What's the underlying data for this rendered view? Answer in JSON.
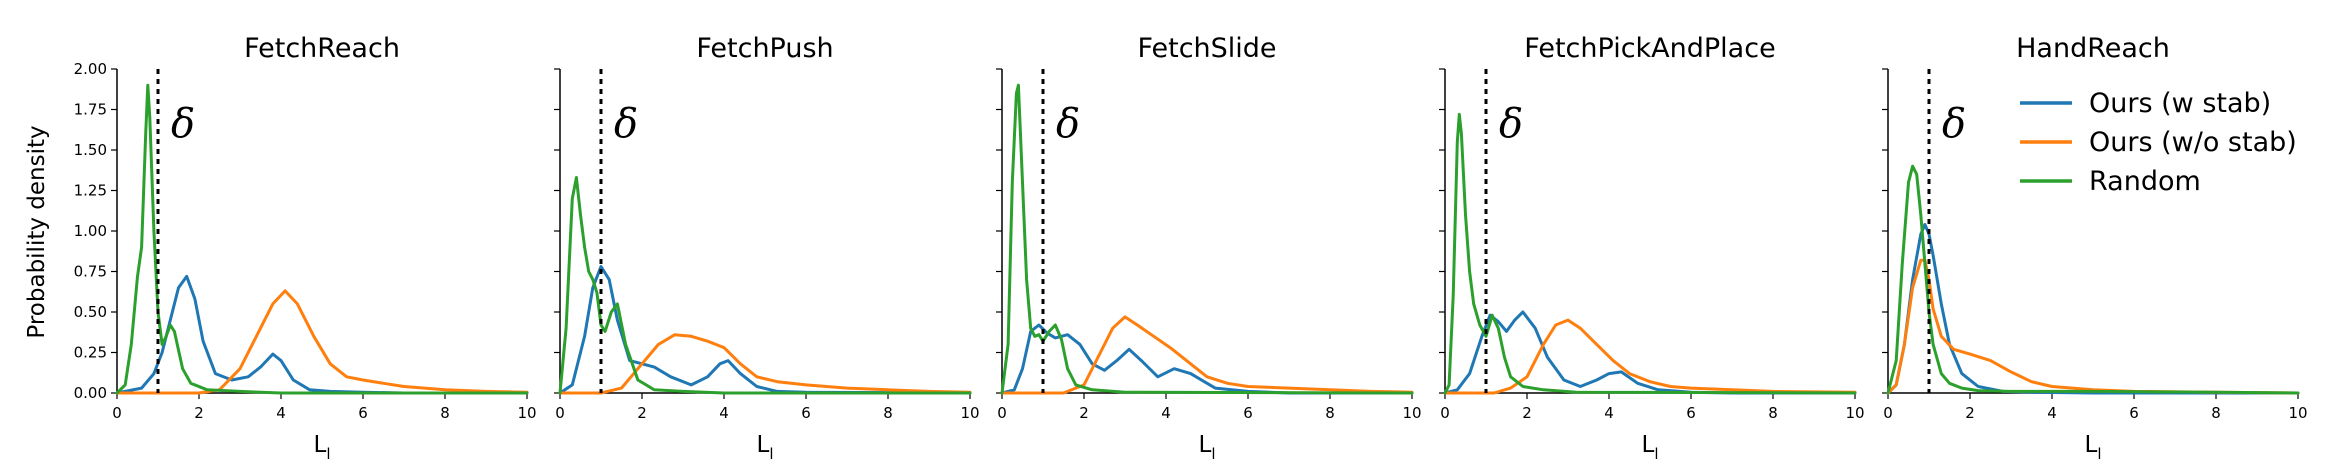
{
  "chart_data": {
    "type": "line",
    "ylabel": "Probability density",
    "threshold_symbol": "δ",
    "threshold_x": 1.0,
    "xlim": [
      0,
      10
    ],
    "ylim": [
      0,
      2.0
    ],
    "x_ticks": [
      "0",
      "2",
      "4",
      "6",
      "8",
      "10"
    ],
    "y_ticks": [
      "0.00",
      "0.25",
      "0.50",
      "0.75",
      "1.00",
      "1.25",
      "1.50",
      "1.75",
      "2.00"
    ],
    "legend": {
      "placement": "upper right of last panel",
      "entries": [
        {
          "label": "Ours (w stab)",
          "color": "#1f77b4"
        },
        {
          "label": "Ours (w/o stab)",
          "color": "#ff7f0e"
        },
        {
          "label": "Random",
          "color": "#2ca02c"
        }
      ]
    },
    "panels": [
      {
        "title": "FetchReach",
        "xlabel": "L",
        "xlabel_sub": "l",
        "series": [
          {
            "name": "Ours (w stab)",
            "color": "#1f77b4",
            "x": [
              0,
              0.6,
              0.9,
              1.1,
              1.3,
              1.5,
              1.7,
              1.9,
              2.1,
              2.4,
              2.8,
              3.2,
              3.5,
              3.8,
              4.0,
              4.3,
              4.7,
              5.2,
              6.0,
              7.0,
              10
            ],
            "y": [
              0,
              0.03,
              0.12,
              0.25,
              0.45,
              0.65,
              0.72,
              0.58,
              0.32,
              0.12,
              0.08,
              0.1,
              0.16,
              0.24,
              0.2,
              0.08,
              0.02,
              0.01,
              0.005,
              0,
              0
            ]
          },
          {
            "name": "Ours (w/o stab)",
            "color": "#ff7f0e",
            "x": [
              0,
              2.0,
              2.5,
              3.0,
              3.4,
              3.8,
              4.1,
              4.4,
              4.8,
              5.2,
              5.6,
              6.0,
              6.5,
              7.0,
              8.0,
              9.0,
              10
            ],
            "y": [
              0,
              0,
              0.02,
              0.15,
              0.35,
              0.55,
              0.63,
              0.55,
              0.35,
              0.18,
              0.1,
              0.08,
              0.06,
              0.04,
              0.02,
              0.01,
              0.005
            ]
          },
          {
            "name": "Random",
            "color": "#2ca02c",
            "x": [
              0,
              0.2,
              0.35,
              0.5,
              0.6,
              0.7,
              0.75,
              0.8,
              0.9,
              1.0,
              1.1,
              1.2,
              1.3,
              1.4,
              1.6,
              1.8,
              2.2,
              3.0,
              4.0,
              10
            ],
            "y": [
              0,
              0.05,
              0.3,
              0.72,
              0.9,
              1.6,
              1.9,
              1.7,
              1.0,
              0.5,
              0.3,
              0.35,
              0.42,
              0.38,
              0.15,
              0.06,
              0.02,
              0.01,
              0,
              0
            ]
          }
        ]
      },
      {
        "title": "FetchPush",
        "xlabel": "L",
        "xlabel_sub": "l",
        "series": [
          {
            "name": "Ours (w stab)",
            "color": "#1f77b4",
            "x": [
              0,
              0.3,
              0.6,
              0.8,
              1.0,
              1.2,
              1.4,
              1.7,
              2.0,
              2.3,
              2.7,
              3.2,
              3.6,
              3.9,
              4.1,
              4.4,
              4.8,
              5.3,
              6.0,
              10
            ],
            "y": [
              0,
              0.05,
              0.35,
              0.65,
              0.78,
              0.7,
              0.45,
              0.2,
              0.18,
              0.16,
              0.1,
              0.05,
              0.1,
              0.18,
              0.2,
              0.12,
              0.04,
              0.01,
              0.005,
              0
            ]
          },
          {
            "name": "Ours (w/o stab)",
            "color": "#ff7f0e",
            "x": [
              0,
              1.0,
              1.5,
              2.0,
              2.4,
              2.8,
              3.2,
              3.6,
              4.0,
              4.4,
              4.8,
              5.3,
              6.0,
              7.0,
              8.0,
              9.0,
              10
            ],
            "y": [
              0,
              0,
              0.03,
              0.18,
              0.3,
              0.36,
              0.35,
              0.32,
              0.28,
              0.18,
              0.1,
              0.07,
              0.05,
              0.03,
              0.02,
              0.01,
              0.005
            ]
          },
          {
            "name": "Random",
            "color": "#2ca02c",
            "x": [
              0,
              0.15,
              0.3,
              0.4,
              0.5,
              0.6,
              0.7,
              0.8,
              0.9,
              1.0,
              1.1,
              1.25,
              1.4,
              1.6,
              1.9,
              2.3,
              3.0,
              4.0,
              10
            ],
            "y": [
              0,
              0.4,
              1.2,
              1.33,
              1.1,
              0.9,
              0.75,
              0.7,
              0.62,
              0.42,
              0.38,
              0.5,
              0.55,
              0.3,
              0.08,
              0.02,
              0.01,
              0,
              0
            ]
          }
        ]
      },
      {
        "title": "FetchSlide",
        "xlabel": "L",
        "xlabel_sub": "l",
        "series": [
          {
            "name": "Ours (w stab)",
            "color": "#1f77b4",
            "x": [
              0,
              0.3,
              0.5,
              0.7,
              0.9,
              1.1,
              1.3,
              1.6,
              1.9,
              2.2,
              2.5,
              2.8,
              3.1,
              3.4,
              3.8,
              4.2,
              4.6,
              5.2,
              6.0,
              7.0,
              10
            ],
            "y": [
              0,
              0.02,
              0.15,
              0.38,
              0.42,
              0.37,
              0.34,
              0.36,
              0.3,
              0.18,
              0.14,
              0.2,
              0.27,
              0.2,
              0.1,
              0.15,
              0.12,
              0.03,
              0.01,
              0,
              0
            ]
          },
          {
            "name": "Ours (w/o stab)",
            "color": "#ff7f0e",
            "x": [
              0,
              1.5,
              2.0,
              2.4,
              2.7,
              3.0,
              3.3,
              3.7,
              4.1,
              4.5,
              5.0,
              5.5,
              6.0,
              7.0,
              8.0,
              9.0,
              10
            ],
            "y": [
              0,
              0,
              0.05,
              0.25,
              0.4,
              0.47,
              0.42,
              0.35,
              0.28,
              0.2,
              0.1,
              0.06,
              0.04,
              0.03,
              0.02,
              0.01,
              0.005
            ]
          },
          {
            "name": "Random",
            "color": "#2ca02c",
            "x": [
              0,
              0.15,
              0.25,
              0.35,
              0.4,
              0.5,
              0.6,
              0.7,
              0.8,
              0.9,
              1.0,
              1.15,
              1.3,
              1.45,
              1.6,
              1.8,
              2.2,
              3.0,
              10
            ],
            "y": [
              0,
              0.3,
              1.3,
              1.85,
              1.9,
              1.3,
              0.7,
              0.4,
              0.35,
              0.36,
              0.32,
              0.38,
              0.42,
              0.33,
              0.15,
              0.05,
              0.02,
              0.005,
              0
            ]
          }
        ]
      },
      {
        "title": "FetchPickAndPlace",
        "xlabel": "L",
        "xlabel_sub": "l",
        "series": [
          {
            "name": "Ours (w stab)",
            "color": "#1f77b4",
            "x": [
              0,
              0.3,
              0.6,
              0.9,
              1.1,
              1.3,
              1.5,
              1.7,
              1.9,
              2.2,
              2.5,
              2.9,
              3.3,
              3.7,
              4.0,
              4.3,
              4.7,
              5.2,
              6.0,
              7.0,
              10
            ],
            "y": [
              0,
              0.02,
              0.12,
              0.35,
              0.48,
              0.44,
              0.38,
              0.45,
              0.5,
              0.4,
              0.22,
              0.08,
              0.04,
              0.08,
              0.12,
              0.13,
              0.06,
              0.02,
              0.005,
              0,
              0
            ]
          },
          {
            "name": "Ours (w/o stab)",
            "color": "#ff7f0e",
            "x": [
              0,
              1.2,
              1.6,
              2.0,
              2.4,
              2.7,
              3.0,
              3.3,
              3.7,
              4.1,
              4.5,
              5.0,
              5.5,
              6.0,
              7.0,
              8.0,
              10
            ],
            "y": [
              0,
              0,
              0.03,
              0.1,
              0.3,
              0.42,
              0.45,
              0.4,
              0.3,
              0.2,
              0.12,
              0.07,
              0.04,
              0.03,
              0.02,
              0.01,
              0.005
            ]
          },
          {
            "name": "Random",
            "color": "#2ca02c",
            "x": [
              0,
              0.1,
              0.2,
              0.3,
              0.35,
              0.4,
              0.5,
              0.6,
              0.7,
              0.85,
              1.0,
              1.15,
              1.3,
              1.45,
              1.6,
              1.9,
              2.4,
              3.2,
              10
            ],
            "y": [
              0,
              0.05,
              0.6,
              1.55,
              1.72,
              1.6,
              1.1,
              0.75,
              0.55,
              0.42,
              0.35,
              0.48,
              0.4,
              0.22,
              0.1,
              0.04,
              0.02,
              0.005,
              0
            ]
          }
        ]
      },
      {
        "title": "HandReach",
        "xlabel": "L",
        "xlabel_sub": "l",
        "series": [
          {
            "name": "Ours (w stab)",
            "color": "#1f77b4",
            "x": [
              0,
              0.2,
              0.4,
              0.6,
              0.8,
              0.9,
              1.0,
              1.1,
              1.3,
              1.5,
              1.8,
              2.2,
              2.8,
              3.5,
              5.0,
              10
            ],
            "y": [
              0,
              0.05,
              0.3,
              0.7,
              0.98,
              1.04,
              0.98,
              0.85,
              0.55,
              0.3,
              0.12,
              0.04,
              0.01,
              0.005,
              0,
              0
            ]
          },
          {
            "name": "Ours (w/o stab)",
            "color": "#ff7f0e",
            "x": [
              0,
              0.2,
              0.4,
              0.6,
              0.8,
              0.9,
              1.0,
              1.1,
              1.3,
              1.6,
              2.0,
              2.5,
              3.0,
              3.5,
              4.0,
              5.0,
              6.0,
              8.0,
              10
            ],
            "y": [
              0,
              0.05,
              0.3,
              0.65,
              0.82,
              0.82,
              0.7,
              0.52,
              0.35,
              0.27,
              0.24,
              0.2,
              0.13,
              0.07,
              0.04,
              0.02,
              0.01,
              0.005,
              0
            ]
          },
          {
            "name": "Random",
            "color": "#2ca02c",
            "x": [
              0,
              0.2,
              0.35,
              0.5,
              0.6,
              0.7,
              0.8,
              0.9,
              1.0,
              1.1,
              1.3,
              1.5,
              1.8,
              2.2,
              3.0,
              5.0,
              8.0,
              10
            ],
            "y": [
              0,
              0.2,
              0.8,
              1.3,
              1.4,
              1.35,
              1.1,
              0.8,
              0.5,
              0.3,
              0.12,
              0.06,
              0.03,
              0.015,
              0.01,
              0.01,
              0.005,
              0
            ]
          }
        ]
      }
    ]
  }
}
